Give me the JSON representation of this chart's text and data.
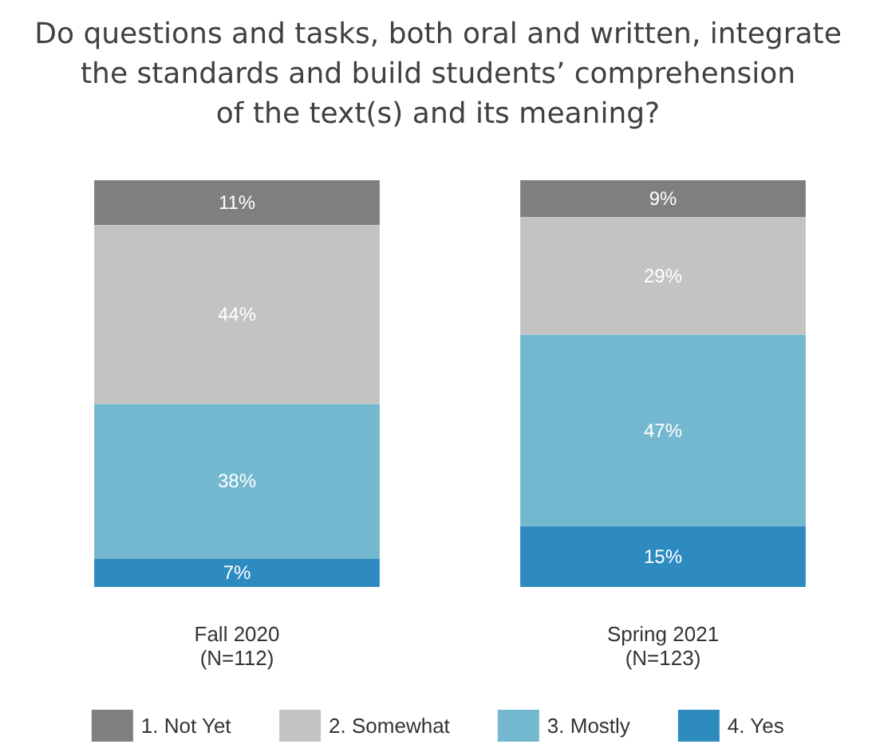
{
  "chart_data": {
    "type": "bar",
    "title": "Do questions and tasks, both oral and written, integrate\nthe standards and build students’ comprehension\nof the text(s) and its meaning?",
    "categories": [
      "Fall 2020\n(N=112)",
      "Spring 2021\n(N=123)"
    ],
    "stacked": true,
    "legend": "bottom",
    "series": [
      {
        "name": "4. Yes",
        "color": "#2e8bc0",
        "values": [
          7,
          15
        ],
        "value_labels": [
          "7%",
          "15%"
        ]
      },
      {
        "name": "3. Mostly",
        "color": "#74b8d0",
        "values": [
          38,
          47
        ],
        "value_labels": [
          "38%",
          "47%"
        ]
      },
      {
        "name": "2. Somewhat",
        "color": "#c3c3c3",
        "values": [
          44,
          29
        ],
        "value_labels": [
          "44%",
          "29%"
        ]
      },
      {
        "name": "1. Not Yet",
        "color": "#7f7f7f",
        "values": [
          11,
          9
        ],
        "value_labels": [
          "11%",
          "9%"
        ]
      }
    ]
  }
}
